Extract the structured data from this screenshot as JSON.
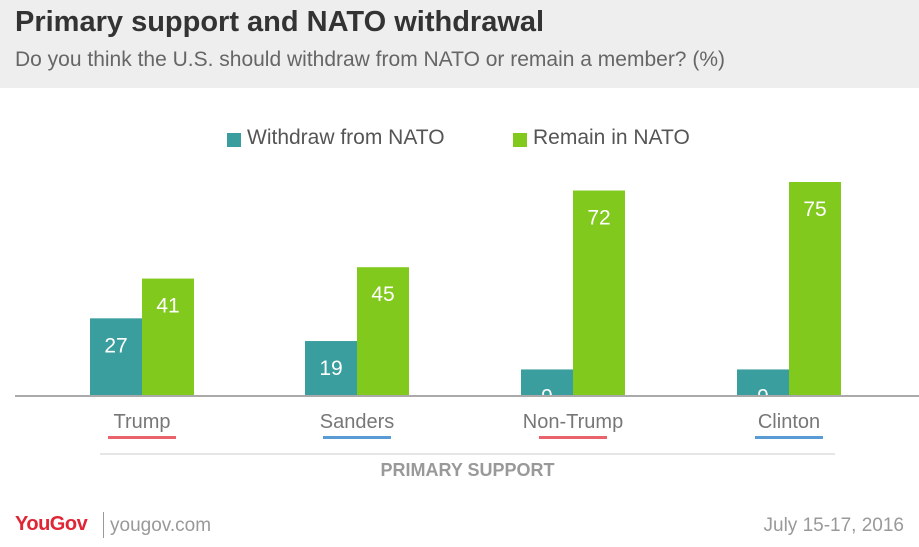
{
  "header": {
    "title": "Primary support and NATO withdrawal",
    "subtitle": "Do you think the U.S. should withdraw from NATO or remain a member? (%)"
  },
  "chart_data": {
    "type": "bar",
    "title": "Primary support and NATO withdrawal",
    "subtitle": "Do you think the U.S. should withdraw from NATO or remain a member? (%)",
    "xlabel": "PRIMARY SUPPORT",
    "ylabel": "",
    "categories": [
      "Trump",
      "Sanders",
      "Non-Trump",
      "Clinton"
    ],
    "category_underline_colors": [
      "#e8636b",
      "#5b9bd5",
      "#e8636b",
      "#5b9bd5"
    ],
    "series": [
      {
        "name": "Withdraw from NATO",
        "color": "#3a9e9e",
        "values": [
          27,
          19,
          9,
          9
        ]
      },
      {
        "name": "Remain in NATO",
        "color": "#82c91e",
        "values": [
          41,
          45,
          72,
          75
        ]
      }
    ],
    "ylim": [
      0,
      80
    ],
    "grid": false,
    "legend_position": "top-center"
  },
  "footer": {
    "brand": "YouGov",
    "site": "yougov.com",
    "date": "July 15-17, 2016"
  }
}
